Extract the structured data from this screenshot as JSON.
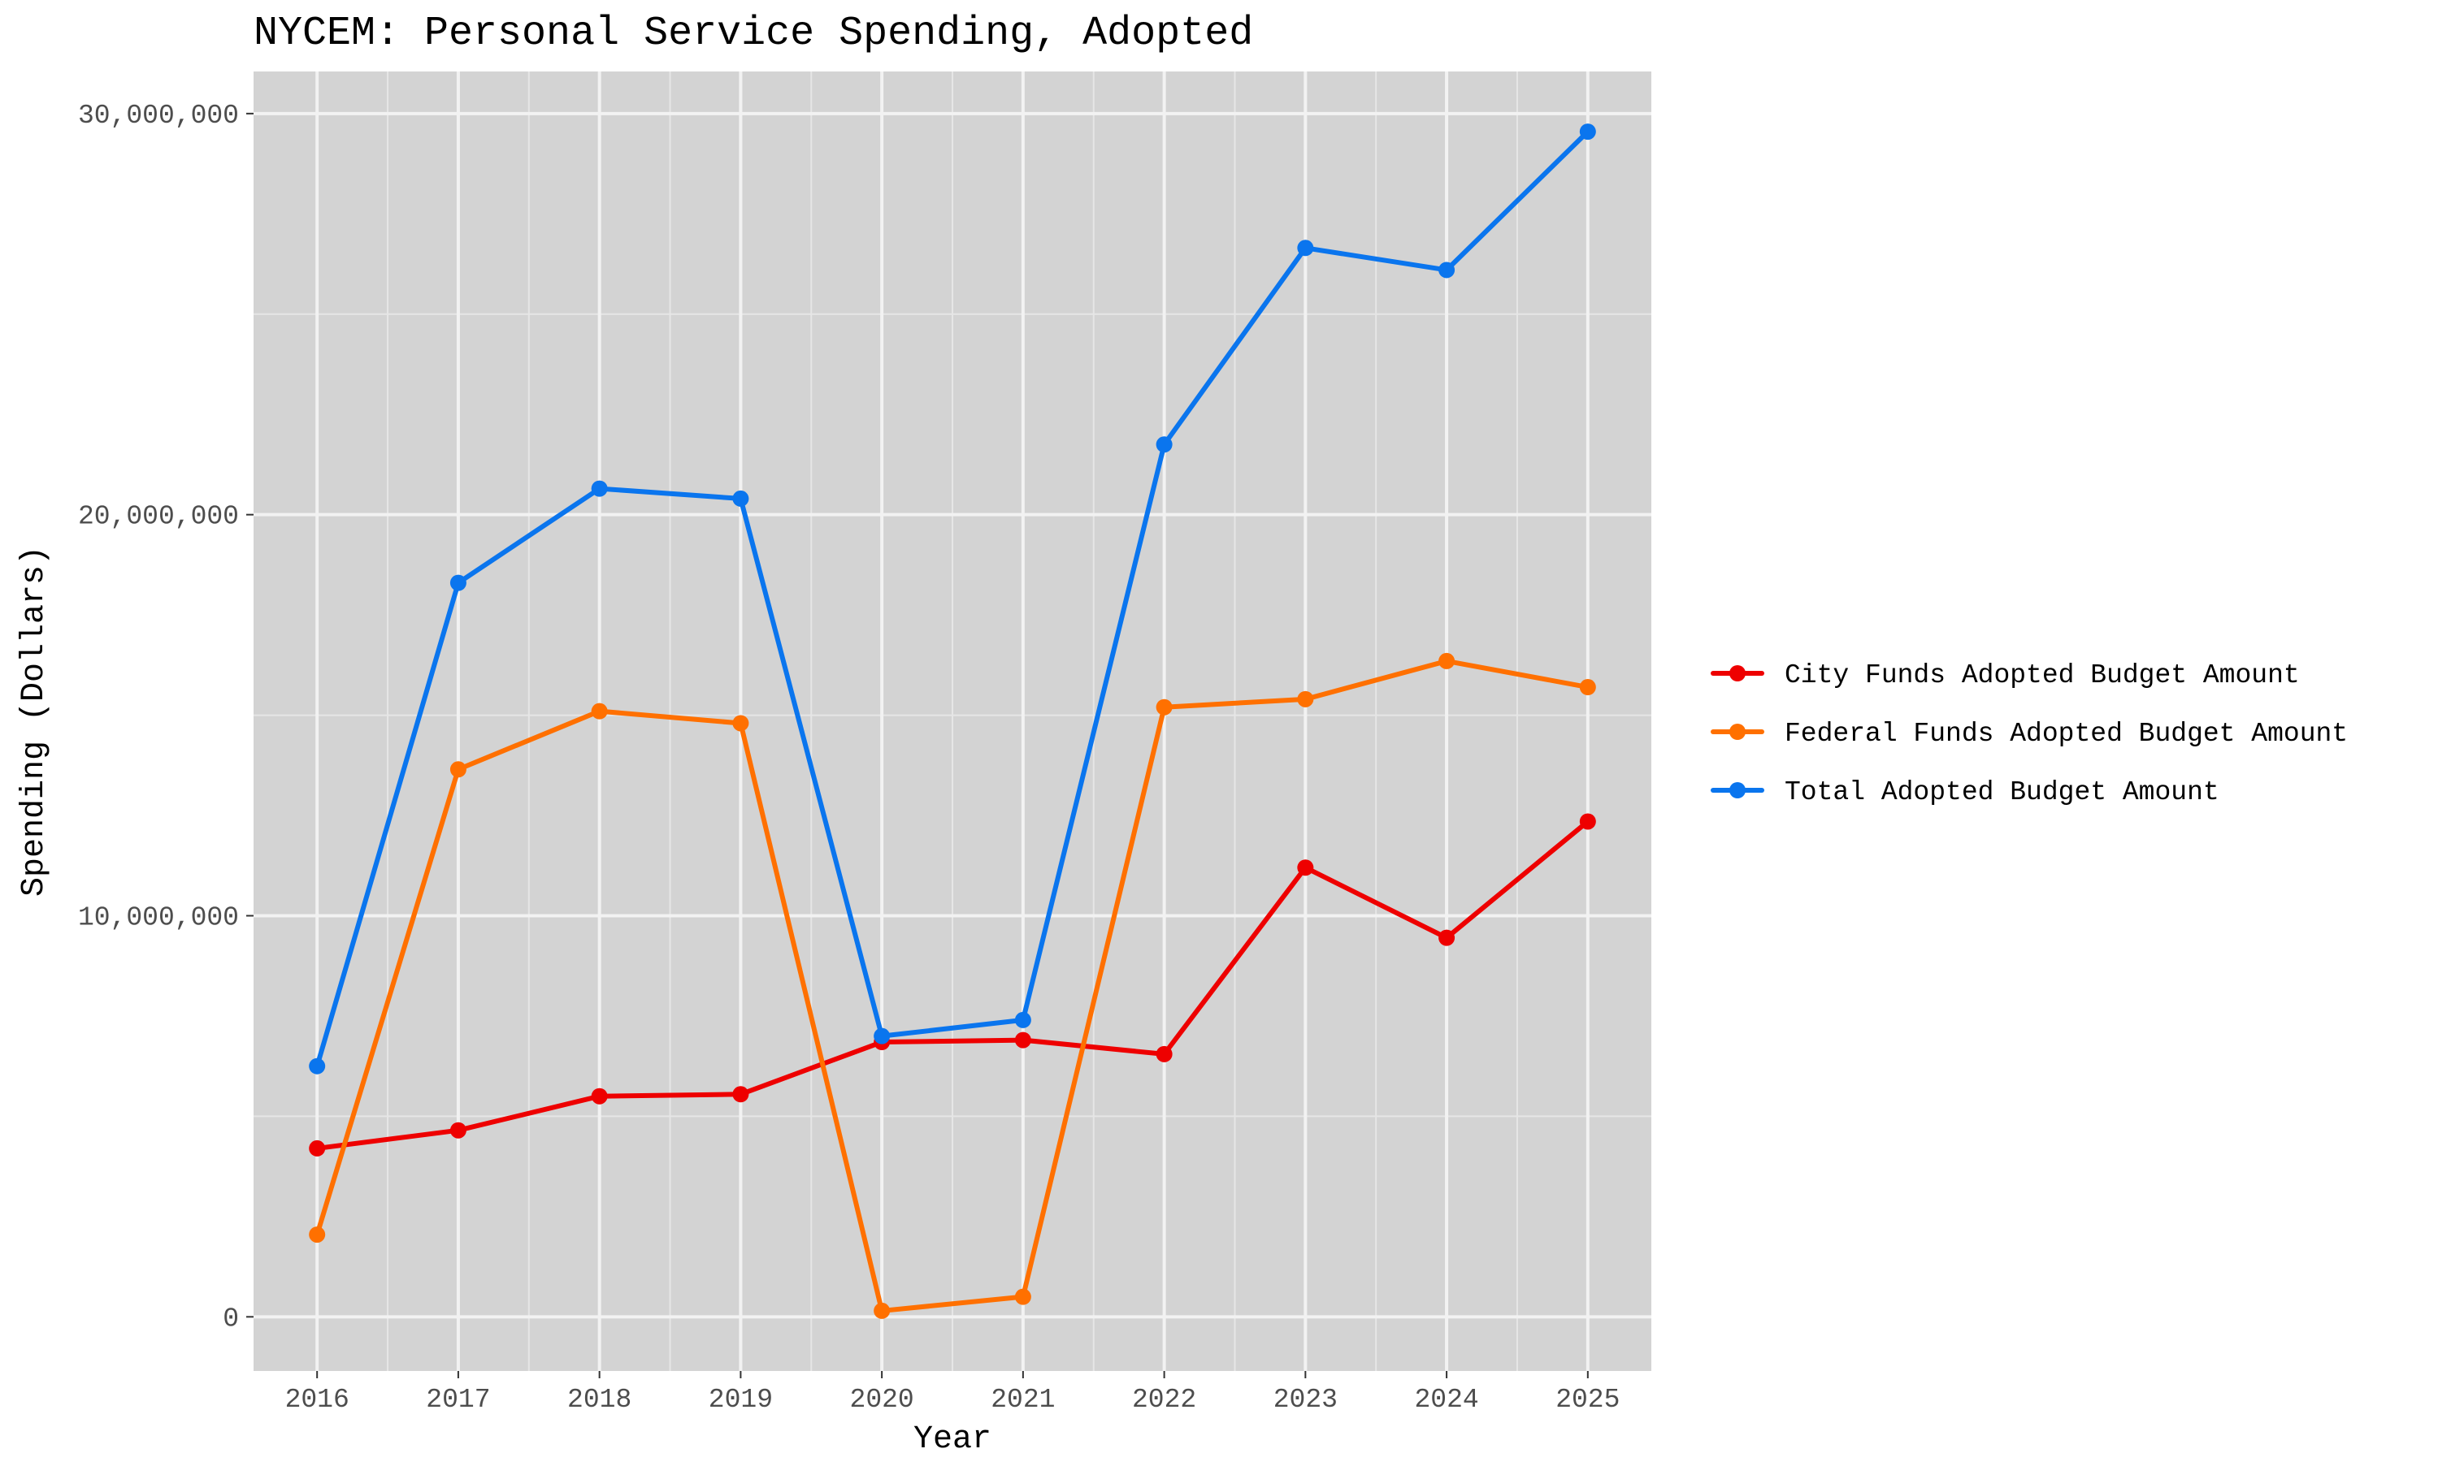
{
  "chart_data": {
    "type": "line",
    "title": "NYCEM: Personal Service Spending, Adopted",
    "xlabel": "Year",
    "ylabel": "Spending (Dollars)",
    "x": [
      2016,
      2017,
      2018,
      2019,
      2020,
      2021,
      2022,
      2023,
      2024,
      2025
    ],
    "x_tick_labels": [
      "2016",
      "2017",
      "2018",
      "2019",
      "2020",
      "2021",
      "2022",
      "2023",
      "2024",
      "2025"
    ],
    "y_ticks": [
      0,
      10000000,
      20000000,
      30000000
    ],
    "y_tick_labels": [
      "0",
      "10,000,000",
      "20,000,000",
      "30,000,000"
    ],
    "xlim": [
      2015.55,
      2025.45
    ],
    "ylim": [
      -1350000,
      31050000
    ],
    "grid": true,
    "legend_position": "right",
    "series": [
      {
        "name": "City Funds Adopted Budget Amount",
        "color": "#ee0000",
        "values": [
          4200000,
          4650000,
          5500000,
          5550000,
          6850000,
          6900000,
          6550000,
          11200000,
          9450000,
          12350000
        ]
      },
      {
        "name": "Federal Funds Adopted Budget Amount",
        "color": "#ff7000",
        "values": [
          2050000,
          13650000,
          15100000,
          14800000,
          150000,
          500000,
          15200000,
          15400000,
          16350000,
          15700000
        ]
      },
      {
        "name": "Total Adopted Budget Amount",
        "color": "#0a75ee",
        "values": [
          6250000,
          18300000,
          20650000,
          20400000,
          7000000,
          7400000,
          21750000,
          26650000,
          26100000,
          29550000
        ]
      }
    ]
  }
}
